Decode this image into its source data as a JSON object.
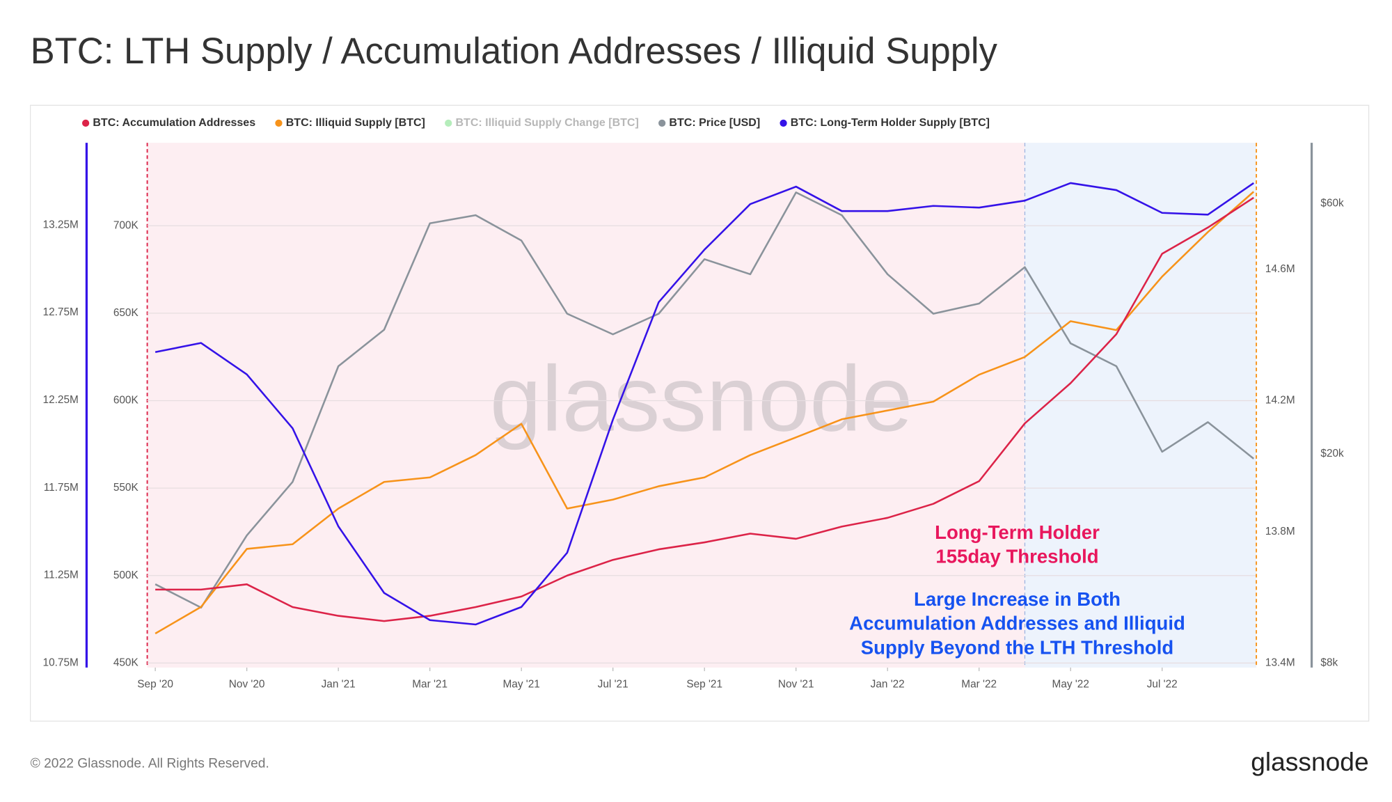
{
  "chart_data": {
    "type": "line",
    "title": "BTC: LTH Supply / Accumulation Addresses / Illiquid Supply",
    "watermark": "glassnode",
    "footer": "© 2022 Glassnode. All Rights Reserved.",
    "brand": "glassnode",
    "x": [
      "2020-09",
      "2020-10",
      "2020-11",
      "2020-12",
      "2021-01",
      "2021-02",
      "2021-03",
      "2021-04",
      "2021-05",
      "2021-06",
      "2021-07",
      "2021-08",
      "2021-09",
      "2021-10",
      "2021-11",
      "2021-12",
      "2022-01",
      "2022-02",
      "2022-03",
      "2022-04",
      "2022-05",
      "2022-06",
      "2022-07",
      "2022-08",
      "2022-09"
    ],
    "xlim": [
      "2020-09",
      "2022-09"
    ],
    "xticks": [
      {
        "value": "2020-09",
        "label": "Sep '20"
      },
      {
        "value": "2020-11",
        "label": "Nov '20"
      },
      {
        "value": "2021-01",
        "label": "Jan '21"
      },
      {
        "value": "2021-03",
        "label": "Mar '21"
      },
      {
        "value": "2021-05",
        "label": "May '21"
      },
      {
        "value": "2021-07",
        "label": "Jul '21"
      },
      {
        "value": "2021-09",
        "label": "Sep '21"
      },
      {
        "value": "2021-11",
        "label": "Nov '21"
      },
      {
        "value": "2022-01",
        "label": "Jan '22"
      },
      {
        "value": "2022-03",
        "label": "Mar '22"
      },
      {
        "value": "2022-05",
        "label": "May '22"
      },
      {
        "value": "2022-07",
        "label": "Jul '22"
      }
    ],
    "threshold": "2022-04",
    "grid": true,
    "series": [
      {
        "name": "BTC: Accumulation Addresses",
        "color": "#dc2348",
        "ylim": [
          447400,
          747400
        ],
        "yticks": [
          {
            "value": 450000,
            "label": "450K"
          },
          {
            "value": 500000,
            "label": "500K"
          },
          {
            "value": 550000,
            "label": "550K"
          },
          {
            "value": 600000,
            "label": "600K"
          },
          {
            "value": 650000,
            "label": "650K"
          },
          {
            "value": 700000,
            "label": "700K"
          }
        ],
        "values": [
          492000,
          492000,
          495000,
          482000,
          477000,
          474000,
          477000,
          482000,
          488000,
          500000,
          509000,
          515000,
          519000,
          524000,
          521000,
          528000,
          533000,
          541000,
          554000,
          587000,
          610000,
          638000,
          684000,
          699000,
          716000
        ]
      },
      {
        "name": "BTC: Illiquid Supply [BTC]",
        "color": "#f7931a",
        "ylim": [
          13386000,
          14986000
        ],
        "yticks": [
          {
            "value": 13400000,
            "label": "13.4M"
          },
          {
            "value": 13800000,
            "label": "13.8M"
          },
          {
            "value": 14200000,
            "label": "14.2M"
          },
          {
            "value": 14600000,
            "label": "14.6M"
          }
        ],
        "values": [
          13490000,
          13571000,
          13748000,
          13762000,
          13871000,
          13952000,
          13966000,
          14034000,
          14129000,
          13871000,
          13898000,
          13939000,
          13966000,
          14034000,
          14088000,
          14143000,
          14170000,
          14197000,
          14279000,
          14333000,
          14442000,
          14415000,
          14578000,
          14714000,
          14837000
        ]
      },
      {
        "name": "BTC: Illiquid Supply Change [BTC]",
        "color": "#2ecc40",
        "hidden": true
      },
      {
        "name": "BTC: Price [USD]",
        "color": "#8a939b",
        "log": true,
        "ylim": [
          7840,
          78300
        ],
        "yticks": [
          {
            "value": 8000,
            "label": "$8k"
          },
          {
            "value": 20000,
            "label": "$20k"
          },
          {
            "value": 60000,
            "label": "$60k"
          }
        ],
        "values": [
          11300,
          10200,
          14000,
          17700,
          29400,
          34500,
          55000,
          57000,
          51000,
          37000,
          33800,
          37000,
          47000,
          44000,
          63000,
          57000,
          44000,
          37000,
          38700,
          45400,
          32500,
          29400,
          20200,
          23000,
          19600
        ]
      },
      {
        "name": "BTC: Long-Term Holder Supply [BTC]",
        "color": "#3412e8",
        "ylim": [
          10724000,
          13720000
        ],
        "yticks": [
          {
            "value": 10750000,
            "label": "10.75M"
          },
          {
            "value": 11250000,
            "label": "11.25M"
          },
          {
            "value": 11750000,
            "label": "11.75M"
          },
          {
            "value": 12250000,
            "label": "12.25M"
          },
          {
            "value": 12750000,
            "label": "12.75M"
          },
          {
            "value": 13250000,
            "label": "13.25M"
          }
        ],
        "values": [
          12525000,
          12577000,
          12398000,
          12090000,
          11530000,
          11150000,
          10995000,
          10970000,
          11070000,
          11380000,
          12140000,
          12810000,
          13110000,
          13370000,
          13470000,
          13330000,
          13330000,
          13360000,
          13350000,
          13390000,
          13490000,
          13450000,
          13320000,
          13310000,
          13490000
        ]
      }
    ],
    "annotations": [
      {
        "color": "#e8175d",
        "lines": [
          "Long-Term Holder",
          "155day Threshold"
        ]
      },
      {
        "color": "#1652f0",
        "lines": [
          "Large Increase in Both",
          "Accumulation Addresses and Illiquid",
          "Supply Beyond the LTH Threshold"
        ]
      }
    ]
  }
}
